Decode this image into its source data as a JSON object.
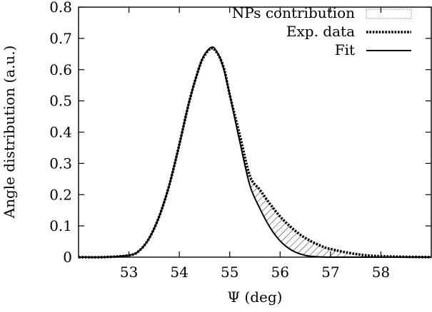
{
  "chart_data": {
    "type": "line",
    "title": "",
    "xlabel": "Ψ (deg)",
    "ylabel": "Angle distribution (a.u.)",
    "xlim": [
      52,
      59
    ],
    "ylim": [
      0,
      0.8
    ],
    "x_ticks": [
      53,
      54,
      55,
      56,
      57,
      58
    ],
    "y_ticks": [
      0,
      0.1,
      0.2,
      0.3,
      0.4,
      0.5,
      0.6,
      0.7,
      0.8
    ],
    "x_tick_labels": [
      "53",
      "54",
      "55",
      "56",
      "57",
      "58"
    ],
    "y_tick_labels": [
      "0",
      "0.1",
      "0.2",
      "0.3",
      "0.4",
      "0.5",
      "0.6",
      "0.7",
      "0.8"
    ],
    "grid": false,
    "legend_position": "top-right",
    "series": [
      {
        "name": "NPs contribution",
        "style": "hatched-area",
        "description": "region between Exp. data and Fit",
        "x": [
          55.4,
          55.6,
          55.8,
          56.0,
          56.2,
          56.4,
          56.6,
          56.8,
          57.0,
          57.4
        ],
        "y_upper": [
          0.26,
          0.215,
          0.17,
          0.13,
          0.098,
          0.072,
          0.052,
          0.037,
          0.026,
          0.012
        ],
        "y_lower": [
          0.23,
          0.155,
          0.095,
          0.052,
          0.025,
          0.01,
          0.003,
          0.001,
          0.0,
          0.0
        ]
      },
      {
        "name": "Exp. data",
        "style": "dotted",
        "color": "#000000",
        "x": [
          52.0,
          52.5,
          53.0,
          53.2,
          53.4,
          53.6,
          53.8,
          54.0,
          54.2,
          54.4,
          54.5,
          54.6,
          54.65,
          54.7,
          54.8,
          54.9,
          55.0,
          55.2,
          55.4,
          55.6,
          55.8,
          56.0,
          56.2,
          56.4,
          56.6,
          56.8,
          57.0,
          57.5,
          58.0,
          59.0
        ],
        "y": [
          0.0,
          0.0,
          0.006,
          0.02,
          0.06,
          0.13,
          0.23,
          0.36,
          0.5,
          0.61,
          0.645,
          0.665,
          0.668,
          0.664,
          0.64,
          0.595,
          0.52,
          0.39,
          0.26,
          0.215,
          0.17,
          0.13,
          0.098,
          0.072,
          0.052,
          0.037,
          0.026,
          0.01,
          0.003,
          0.0
        ]
      },
      {
        "name": "Fit",
        "style": "solid",
        "color": "#000000",
        "x": [
          52.0,
          52.5,
          53.0,
          53.2,
          53.4,
          53.6,
          53.8,
          54.0,
          54.2,
          54.4,
          54.5,
          54.6,
          54.65,
          54.7,
          54.8,
          54.9,
          55.0,
          55.2,
          55.4,
          55.6,
          55.8,
          56.0,
          56.2,
          56.4,
          56.6,
          57.0,
          58.0,
          59.0
        ],
        "y": [
          0.0,
          0.0,
          0.006,
          0.02,
          0.06,
          0.13,
          0.23,
          0.36,
          0.5,
          0.61,
          0.648,
          0.668,
          0.672,
          0.668,
          0.64,
          0.59,
          0.52,
          0.37,
          0.23,
          0.155,
          0.095,
          0.052,
          0.025,
          0.01,
          0.003,
          0.0,
          0.0,
          0.0
        ]
      }
    ]
  }
}
